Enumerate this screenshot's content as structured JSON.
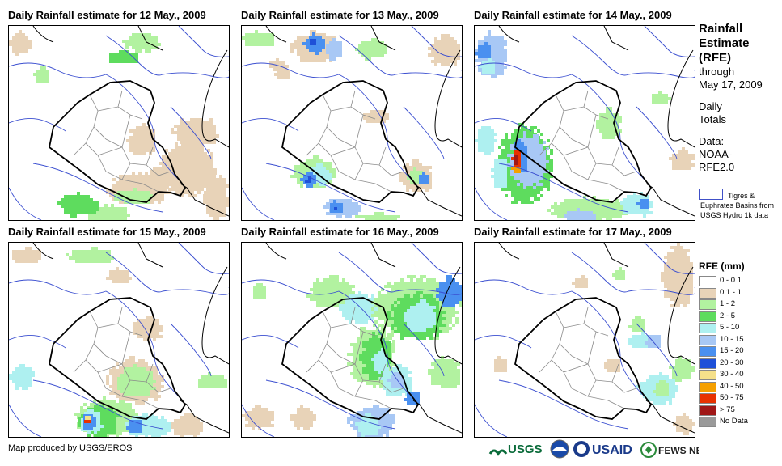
{
  "panels": [
    {
      "title": "Daily Rainfall estimate for 12 May., 2009",
      "date": "12 May 2009"
    },
    {
      "title": "Daily Rainfall estimate for 13 May., 2009",
      "date": "13 May 2009"
    },
    {
      "title": "Daily Rainfall estimate for 14 May., 2009",
      "date": "14 May 2009"
    },
    {
      "title": "Daily Rainfall estimate for 15 May., 2009",
      "date": "15 May 2009"
    },
    {
      "title": "Daily Rainfall estimate for 16 May., 2009",
      "date": "16 May 2009"
    },
    {
      "title": "Daily Rainfall estimate for 17 May., 2009",
      "date": "17 May 2009"
    }
  ],
  "sidebar": {
    "title_lines": [
      "Rainfall",
      "Estimate",
      "(RFE)"
    ],
    "through": "through",
    "through_date": "May 17, 2009",
    "daily": "Daily",
    "totals": "Totals",
    "data_lines": [
      "Data:",
      "NOAA-",
      "RFE2.0"
    ],
    "basin_text": "Tigres & Euphrates Basins from USGS Hydro 1k data"
  },
  "legend": {
    "title": "RFE (mm)",
    "items": [
      {
        "label": "0 - 0.1",
        "color": "#ffffff"
      },
      {
        "label": "0.1 - 1",
        "color": "#e8d3b8"
      },
      {
        "label": "1 - 2",
        "color": "#b2f2a0"
      },
      {
        "label": "2 - 5",
        "color": "#5edc5e"
      },
      {
        "label": "5 - 10",
        "color": "#aef0f0"
      },
      {
        "label": "10 - 15",
        "color": "#a8c8f5"
      },
      {
        "label": "15 - 20",
        "color": "#4a90f0"
      },
      {
        "label": "20 - 30",
        "color": "#1e50d8"
      },
      {
        "label": "30 - 40",
        "color": "#f5e08a"
      },
      {
        "label": "40 - 50",
        "color": "#f5a000"
      },
      {
        "label": "50 - 75",
        "color": "#e83200"
      },
      {
        "label": "> 75",
        "color": "#a01818"
      },
      {
        "label": "No Data",
        "color": "#9a9a9a"
      }
    ]
  },
  "footer": {
    "credit": "Map produced by USGS/EROS",
    "logos": [
      "USGS",
      "NOAA",
      "USAID",
      "FEWS NET"
    ]
  }
}
